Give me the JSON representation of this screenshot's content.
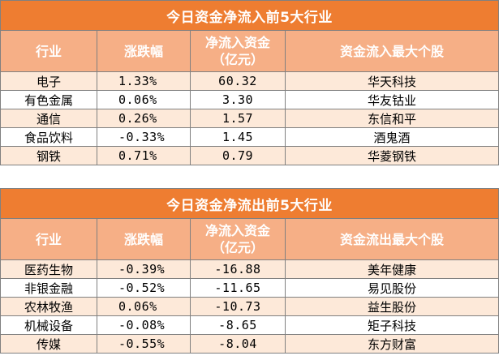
{
  "inflow": {
    "title": "今日资金净流入前5大行业",
    "headers": {
      "industry": "行业",
      "change": "涨跌幅",
      "net_line1": "净流入资金",
      "net_line2": "（亿元）",
      "top_stock": "资金流入最大个股"
    },
    "rows": [
      {
        "industry": "电子",
        "change": "1.33%",
        "net": "60.32",
        "stock": "华天科技"
      },
      {
        "industry": "有色金属",
        "change": "0.06%",
        "net": "3.30",
        "stock": "华友钴业"
      },
      {
        "industry": "通信",
        "change": "0.26%",
        "net": "1.57",
        "stock": "东信和平"
      },
      {
        "industry": "食品饮料",
        "change": "-0.33%",
        "net": "1.45",
        "stock": "酒鬼酒"
      },
      {
        "industry": "钢铁",
        "change": "0.71%",
        "net": "0.79",
        "stock": "华菱钢铁"
      }
    ]
  },
  "outflow": {
    "title": "今日资金净流出前5大行业",
    "headers": {
      "industry": "行业",
      "change": "涨跌幅",
      "net_line1": "净流入资金",
      "net_line2": "（亿元）",
      "top_stock": "资金流出最大个股"
    },
    "rows": [
      {
        "industry": "医药生物",
        "change": "-0.39%",
        "net": "-16.88",
        "stock": "美年健康"
      },
      {
        "industry": "非银金融",
        "change": "-0.52%",
        "net": "-11.65",
        "stock": "易见股份"
      },
      {
        "industry": "农林牧渔",
        "change": "0.06%",
        "net": "-10.73",
        "stock": "益生股份"
      },
      {
        "industry": "机械设备",
        "change": "-0.08%",
        "net": "-8.65",
        "stock": "矩子科技"
      },
      {
        "industry": "传媒",
        "change": "-0.55%",
        "net": "-8.04",
        "stock": "东方财富"
      }
    ]
  },
  "colors": {
    "title_bg": "#ee7d31",
    "header_bg": "#f6af86",
    "stripe_bg": "#fde9d9",
    "border": "#808080"
  }
}
